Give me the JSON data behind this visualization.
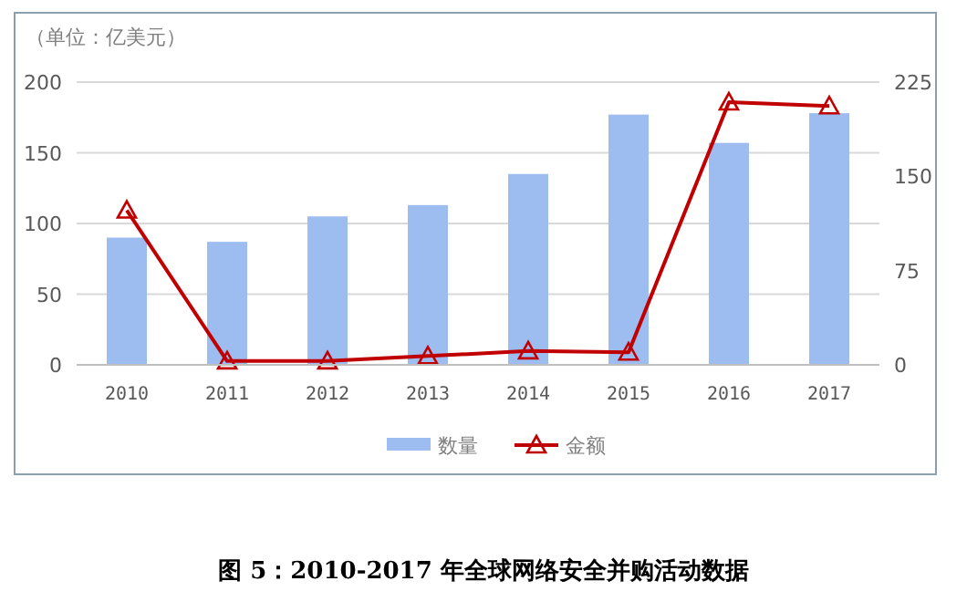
{
  "chart_data": {
    "type": "bar",
    "title": "图 5：2010-2017 年全球网络安全并购活动数据",
    "annotations": [
      "（单位：亿美元）"
    ],
    "categories": [
      "2010",
      "2011",
      "2012",
      "2013",
      "2014",
      "2015",
      "2016",
      "2017"
    ],
    "series": [
      {
        "name": "数量",
        "color": "#9dbcf0",
        "values": [
          90,
          87,
          105,
          113,
          135,
          177,
          157,
          178
        ]
      },
      {
        "name": "金额",
        "type": "line",
        "axis": "y2",
        "color": "#c00000",
        "marker": "triangle",
        "values": [
          123,
          3,
          3,
          7,
          11,
          10,
          209,
          206
        ]
      }
    ],
    "ylim": [
      0,
      200
    ],
    "yticks": [
      0,
      50,
      100,
      150,
      200
    ],
    "y2lim": [
      0,
      225
    ],
    "y2ticks": [
      0,
      75,
      150,
      225
    ],
    "grid": "y",
    "legend": "bottom"
  }
}
